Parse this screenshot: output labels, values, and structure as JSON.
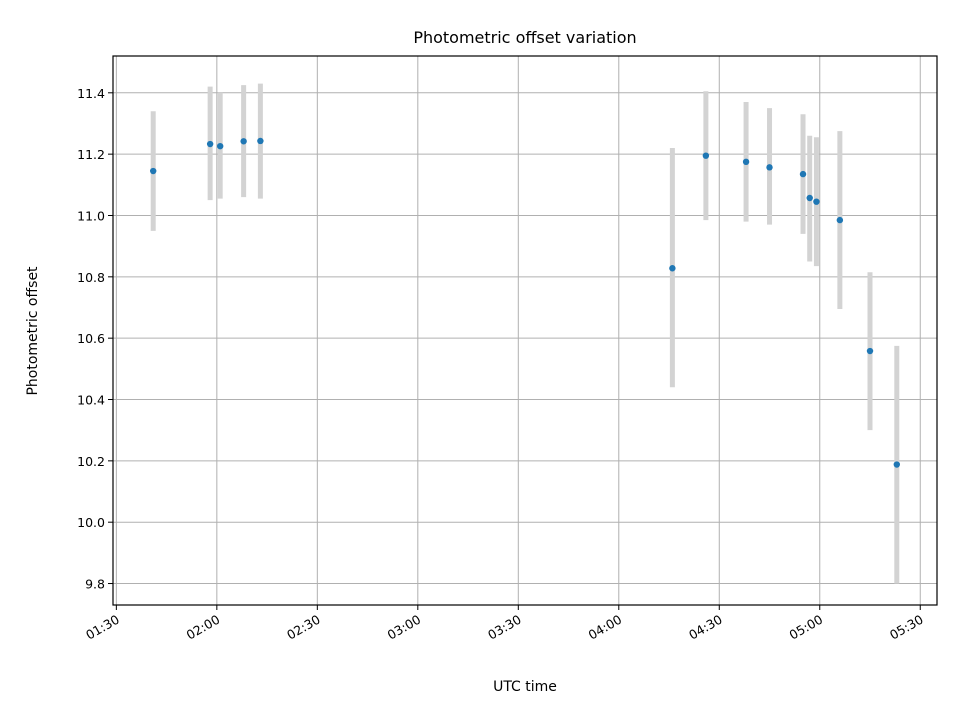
{
  "chart_data": {
    "type": "scatter",
    "title": "Photometric offset variation",
    "xlabel": "UTC time",
    "ylabel": "Photometric offset",
    "x_ticks": [
      "01:30",
      "02:00",
      "02:30",
      "03:00",
      "03:30",
      "04:00",
      "04:30",
      "05:00",
      "05:30"
    ],
    "y_ticks": [
      "9.8",
      "10.0",
      "10.2",
      "10.4",
      "10.6",
      "10.8",
      "11.0",
      "11.2",
      "11.4"
    ],
    "xlim": [
      "01:29",
      "05:35"
    ],
    "ylim": [
      9.73,
      11.52
    ],
    "grid": true,
    "point_color": "#1f77b4",
    "errorbar_color": "#d3d3d3",
    "series": [
      {
        "x": [
          "01:41",
          "01:58",
          "02:01",
          "02:08",
          "02:13",
          "04:16",
          "04:26",
          "04:38",
          "04:45",
          "04:55",
          "04:57",
          "04:59",
          "05:06",
          "05:15",
          "05:23"
        ],
        "y": [
          11.145,
          11.233,
          11.226,
          11.242,
          11.243,
          10.828,
          11.195,
          11.175,
          11.157,
          11.135,
          11.057,
          11.045,
          10.985,
          10.558,
          10.188
        ],
        "yerr_low": [
          10.95,
          11.05,
          11.055,
          11.06,
          11.055,
          10.44,
          10.985,
          10.98,
          10.97,
          10.94,
          10.85,
          10.835,
          10.695,
          10.3,
          9.8
        ],
        "yerr_high": [
          11.34,
          11.42,
          11.4,
          11.425,
          11.43,
          11.22,
          11.405,
          11.37,
          11.35,
          11.33,
          11.26,
          11.255,
          11.275,
          10.815,
          10.575
        ]
      }
    ]
  }
}
